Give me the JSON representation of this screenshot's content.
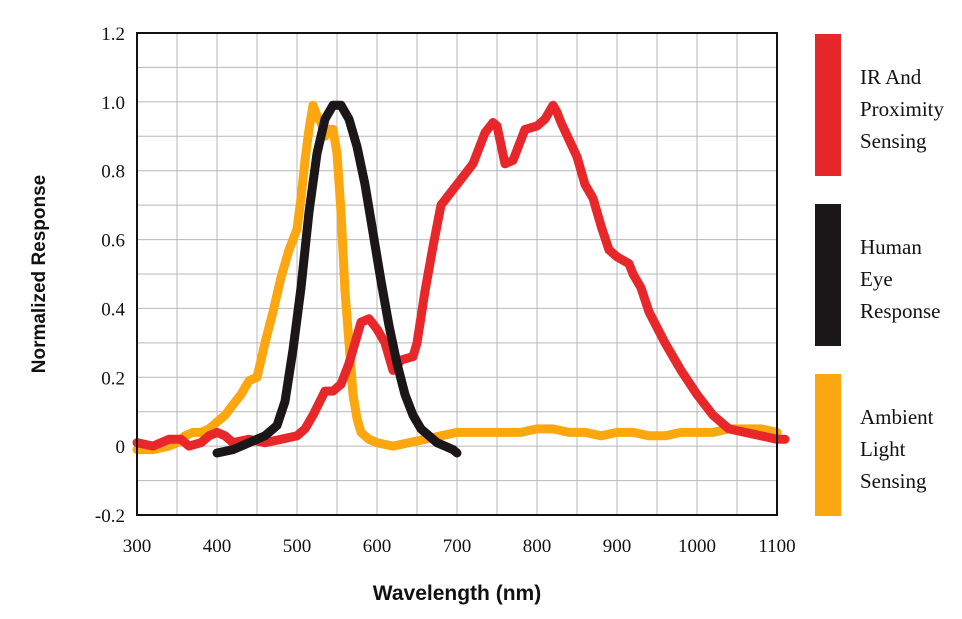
{
  "chart_data": {
    "type": "line",
    "title": "",
    "xlabel": "Wavelength (nm)",
    "ylabel": "Normalized Response",
    "xlim": [
      300,
      1100
    ],
    "ylim": [
      -0.2,
      1.2
    ],
    "grid": true,
    "legend_position": "right",
    "x_ticks": [
      "300",
      "400",
      "500",
      "600",
      "700",
      "800",
      "900",
      "1000",
      "1100"
    ],
    "x_tick_values": [
      300,
      400,
      500,
      600,
      700,
      800,
      900,
      1000,
      1100
    ],
    "y_ticks": [
      "1.2",
      "1.0",
      "0.8",
      "0.6",
      "0.4",
      "0.2",
      "0",
      "-0.2"
    ],
    "y_tick_values": [
      1.2,
      1.0,
      0.8,
      0.6,
      0.4,
      0.2,
      0,
      -0.2
    ],
    "series": [
      {
        "key": "ir",
        "name": "IR And Proximity Sensing",
        "legend_lines": [
          "IR And",
          "Proximity",
          "Sensing"
        ],
        "color": "#e8272b",
        "x": [
          300,
          320,
          340,
          355,
          365,
          380,
          390,
          400,
          410,
          420,
          440,
          460,
          480,
          500,
          510,
          520,
          535,
          545,
          555,
          565,
          580,
          590,
          600,
          610,
          620,
          630,
          645,
          650,
          660,
          670,
          680,
          690,
          700,
          720,
          735,
          745,
          750,
          760,
          770,
          785,
          800,
          810,
          815,
          820,
          825,
          830,
          840,
          850,
          860,
          870,
          880,
          890,
          900,
          915,
          920,
          930,
          940,
          960,
          980,
          1000,
          1020,
          1040,
          1060,
          1080,
          1100,
          1110
        ],
        "y": [
          0.01,
          0.0,
          0.02,
          0.02,
          0.0,
          0.01,
          0.03,
          0.04,
          0.03,
          0.01,
          0.02,
          0.01,
          0.02,
          0.03,
          0.05,
          0.09,
          0.16,
          0.16,
          0.18,
          0.24,
          0.36,
          0.37,
          0.34,
          0.3,
          0.22,
          0.25,
          0.26,
          0.3,
          0.45,
          0.58,
          0.7,
          0.73,
          0.76,
          0.82,
          0.91,
          0.94,
          0.93,
          0.82,
          0.83,
          0.92,
          0.93,
          0.95,
          0.97,
          0.99,
          0.97,
          0.94,
          0.89,
          0.84,
          0.76,
          0.72,
          0.64,
          0.57,
          0.55,
          0.53,
          0.5,
          0.46,
          0.39,
          0.3,
          0.22,
          0.15,
          0.09,
          0.05,
          0.04,
          0.03,
          0.02,
          0.02
        ]
      },
      {
        "key": "eye",
        "name": "Human Eye Response",
        "legend_lines": [
          "Human",
          "Eye",
          "Response"
        ],
        "color": "#1b1718",
        "x": [
          400,
          420,
          440,
          460,
          475,
          485,
          495,
          505,
          515,
          525,
          535,
          545,
          555,
          565,
          575,
          585,
          595,
          605,
          615,
          625,
          635,
          645,
          655,
          665,
          675,
          685,
          695,
          700
        ],
        "y": [
          -0.02,
          -0.01,
          0.01,
          0.03,
          0.06,
          0.13,
          0.28,
          0.46,
          0.68,
          0.85,
          0.95,
          0.99,
          0.99,
          0.95,
          0.87,
          0.76,
          0.62,
          0.48,
          0.35,
          0.24,
          0.15,
          0.09,
          0.05,
          0.03,
          0.01,
          0.0,
          -0.01,
          -0.02
        ]
      },
      {
        "key": "ambient",
        "name": "Ambient Light Sensing",
        "legend_lines": [
          "Ambient",
          "Light",
          "Sensing"
        ],
        "color": "#fca70f",
        "x": [
          300,
          320,
          340,
          350,
          360,
          370,
          380,
          390,
          400,
          410,
          420,
          430,
          440,
          450,
          460,
          470,
          480,
          490,
          500,
          505,
          510,
          515,
          520,
          525,
          530,
          535,
          540,
          545,
          550,
          555,
          560,
          565,
          570,
          575,
          580,
          590,
          600,
          620,
          640,
          660,
          680,
          700,
          720,
          740,
          760,
          780,
          800,
          820,
          840,
          860,
          880,
          900,
          920,
          940,
          960,
          980,
          1000,
          1020,
          1040,
          1060,
          1080,
          1100
        ],
        "y": [
          -0.01,
          -0.01,
          0.0,
          0.01,
          0.03,
          0.04,
          0.04,
          0.05,
          0.07,
          0.09,
          0.12,
          0.15,
          0.19,
          0.2,
          0.3,
          0.39,
          0.49,
          0.57,
          0.63,
          0.72,
          0.83,
          0.92,
          0.99,
          0.96,
          0.94,
          0.9,
          0.92,
          0.92,
          0.85,
          0.68,
          0.45,
          0.3,
          0.15,
          0.08,
          0.04,
          0.02,
          0.01,
          0.0,
          0.01,
          0.02,
          0.03,
          0.04,
          0.04,
          0.04,
          0.04,
          0.04,
          0.05,
          0.05,
          0.04,
          0.04,
          0.03,
          0.04,
          0.04,
          0.03,
          0.03,
          0.04,
          0.04,
          0.04,
          0.05,
          0.05,
          0.05,
          0.04
        ]
      }
    ]
  }
}
